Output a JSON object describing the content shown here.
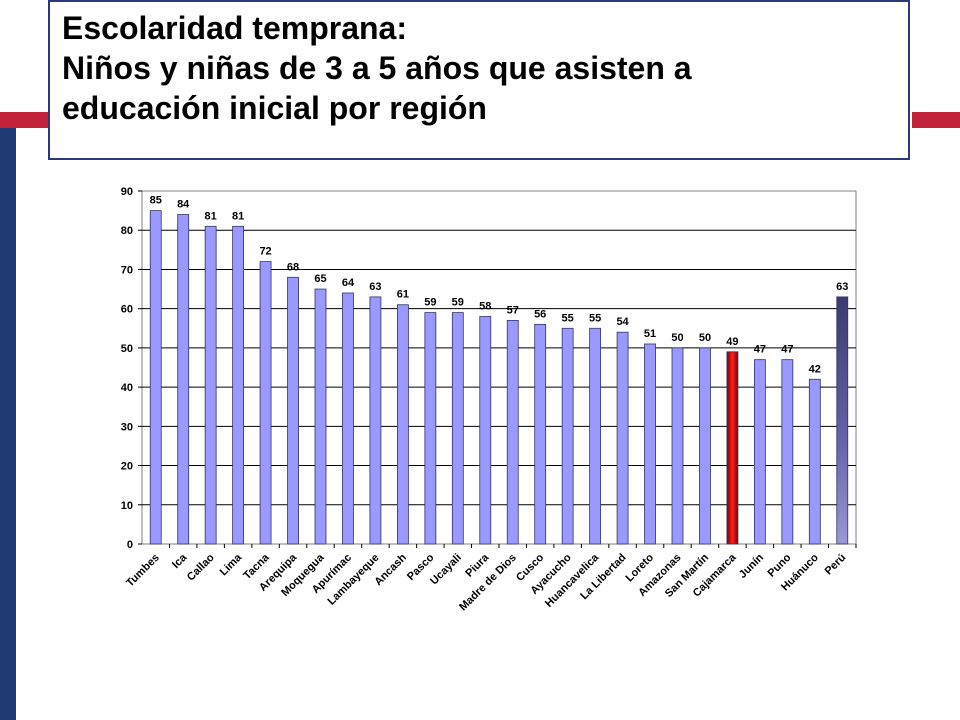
{
  "slide": {
    "title_line1": "Escolaridad temprana:",
    "title_line2": "Niños y niñas de 3 a 5 años que asisten a",
    "title_line3": "educación inicial por región"
  },
  "colors": {
    "accent_navy": "#1f3a75",
    "accent_red": "#c4233c",
    "bar_default": "#9999ff",
    "bar_highlight_cajamarca": "#e01010",
    "bar_highlight_peru": "#55558a"
  },
  "chart_data": {
    "type": "bar",
    "title": "",
    "xlabel": "",
    "ylabel": "",
    "ylim": [
      0,
      90
    ],
    "yticks": [
      0,
      10,
      20,
      30,
      40,
      50,
      60,
      70,
      80,
      90
    ],
    "grid": "horizontal",
    "categories": [
      "Tumbes",
      "Ica",
      "Callao",
      "Lima",
      "Tacna",
      "Arequipa",
      "Moquegua",
      "Apurímac",
      "Lambayeque",
      "Ancash",
      "Pasco",
      "Ucayali",
      "Piura",
      "Madre de Dios",
      "Cusco",
      "Ayacucho",
      "Huancavelica",
      "La Libertad",
      "Loreto",
      "Amazonas",
      "San Martín",
      "Cajamarca",
      "Junín",
      "Puno",
      "Huánuco",
      "Perú"
    ],
    "values": [
      85,
      84,
      81,
      81,
      72,
      68,
      65,
      64,
      63,
      61,
      59,
      59,
      58,
      57,
      56,
      55,
      55,
      54,
      51,
      50,
      50,
      49,
      47,
      47,
      42,
      63
    ],
    "highlighted": [
      "Cajamarca",
      "Perú"
    ]
  }
}
